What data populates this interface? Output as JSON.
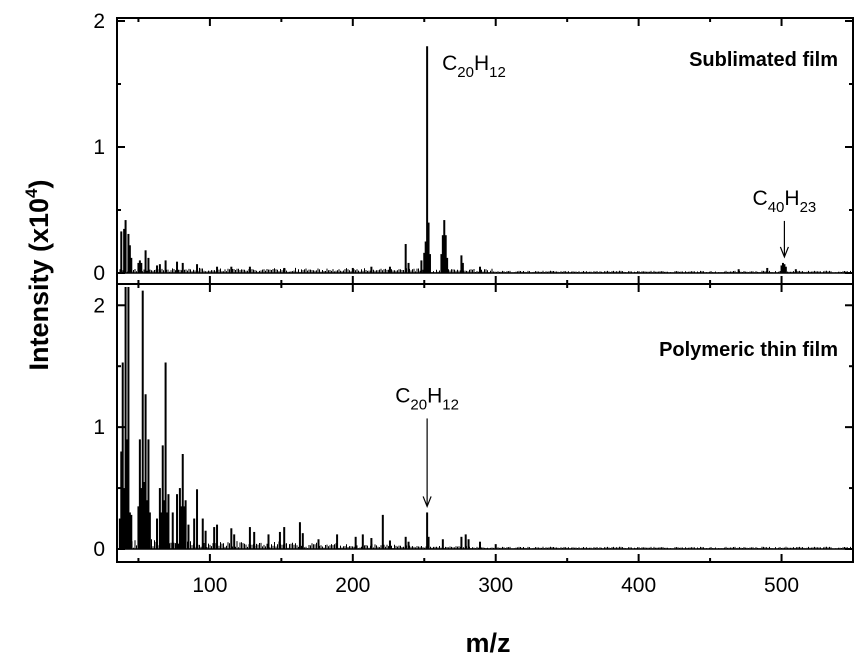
{
  "chart_data": [
    {
      "panel": "top",
      "type": "bar",
      "label": "Sublimated film",
      "xlabel": "m/z",
      "ylabel": "Intensity (x10^4)",
      "xlim": [
        35,
        550
      ],
      "ylim": [
        0,
        2
      ],
      "xticks": [
        100,
        200,
        300,
        400,
        500
      ],
      "yticks": [
        0,
        1,
        2
      ],
      "grid": false,
      "peaks": [
        {
          "x": 38,
          "y": 0.33
        },
        {
          "x": 40,
          "y": 0.35
        },
        {
          "x": 41,
          "y": 0.42
        },
        {
          "x": 43,
          "y": 0.31
        },
        {
          "x": 44,
          "y": 0.22
        },
        {
          "x": 45,
          "y": 0.12
        },
        {
          "x": 50,
          "y": 0.08
        },
        {
          "x": 51,
          "y": 0.1
        },
        {
          "x": 52,
          "y": 0.08
        },
        {
          "x": 55,
          "y": 0.18
        },
        {
          "x": 57,
          "y": 0.12
        },
        {
          "x": 63,
          "y": 0.06
        },
        {
          "x": 65,
          "y": 0.07
        },
        {
          "x": 69,
          "y": 0.1
        },
        {
          "x": 77,
          "y": 0.09
        },
        {
          "x": 81,
          "y": 0.08
        },
        {
          "x": 91,
          "y": 0.07
        },
        {
          "x": 105,
          "y": 0.05
        },
        {
          "x": 115,
          "y": 0.05
        },
        {
          "x": 128,
          "y": 0.05
        },
        {
          "x": 152,
          "y": 0.04
        },
        {
          "x": 200,
          "y": 0.04
        },
        {
          "x": 213,
          "y": 0.05
        },
        {
          "x": 226,
          "y": 0.05
        },
        {
          "x": 237,
          "y": 0.23
        },
        {
          "x": 239,
          "y": 0.08
        },
        {
          "x": 248,
          "y": 0.1
        },
        {
          "x": 250,
          "y": 0.16
        },
        {
          "x": 251,
          "y": 0.25
        },
        {
          "x": 252,
          "y": 1.8
        },
        {
          "x": 253,
          "y": 0.4
        },
        {
          "x": 254,
          "y": 0.15
        },
        {
          "x": 262,
          "y": 0.15
        },
        {
          "x": 263,
          "y": 0.3
        },
        {
          "x": 264,
          "y": 0.42
        },
        {
          "x": 265,
          "y": 0.3
        },
        {
          "x": 266,
          "y": 0.12
        },
        {
          "x": 276,
          "y": 0.14
        },
        {
          "x": 277,
          "y": 0.08
        },
        {
          "x": 289,
          "y": 0.05
        },
        {
          "x": 470,
          "y": 0.03
        },
        {
          "x": 490,
          "y": 0.04
        },
        {
          "x": 500,
          "y": 0.06
        },
        {
          "x": 501,
          "y": 0.08
        },
        {
          "x": 502,
          "y": 0.07
        },
        {
          "x": 503,
          "y": 0.05
        },
        {
          "x": 510,
          "y": 0.03
        }
      ],
      "annotations": [
        {
          "x": 252,
          "y": 1.8,
          "base": "C",
          "sub1": "20",
          "base2": "H",
          "sub2": "12",
          "arrow": false
        },
        {
          "x": 502,
          "y": 0.08,
          "base": "C",
          "sub1": "40",
          "base2": "H",
          "sub2": "23",
          "arrow": true
        }
      ]
    },
    {
      "panel": "bottom",
      "type": "bar",
      "label": "Polymeric thin film",
      "xlabel": "m/z",
      "ylabel": "Intensity (x10^4)",
      "xlim": [
        35,
        550
      ],
      "ylim": [
        0,
        2.15
      ],
      "xticks": [
        100,
        200,
        300,
        400,
        500
      ],
      "yticks": [
        0,
        1,
        2
      ],
      "grid": false,
      "peaks": [
        {
          "x": 37,
          "y": 0.25
        },
        {
          "x": 38,
          "y": 0.8
        },
        {
          "x": 39,
          "y": 1.53
        },
        {
          "x": 40,
          "y": 0.5
        },
        {
          "x": 41,
          "y": 2.15
        },
        {
          "x": 42,
          "y": 0.9
        },
        {
          "x": 43,
          "y": 2.15
        },
        {
          "x": 44,
          "y": 0.3
        },
        {
          "x": 45,
          "y": 0.28
        },
        {
          "x": 50,
          "y": 0.35
        },
        {
          "x": 51,
          "y": 0.9
        },
        {
          "x": 52,
          "y": 0.5
        },
        {
          "x": 53,
          "y": 2.12
        },
        {
          "x": 54,
          "y": 0.55
        },
        {
          "x": 55,
          "y": 1.27
        },
        {
          "x": 56,
          "y": 0.4
        },
        {
          "x": 57,
          "y": 0.9
        },
        {
          "x": 58,
          "y": 0.3
        },
        {
          "x": 63,
          "y": 0.25
        },
        {
          "x": 65,
          "y": 0.5
        },
        {
          "x": 66,
          "y": 0.3
        },
        {
          "x": 67,
          "y": 0.85
        },
        {
          "x": 68,
          "y": 0.4
        },
        {
          "x": 69,
          "y": 1.53
        },
        {
          "x": 70,
          "y": 0.3
        },
        {
          "x": 71,
          "y": 0.45
        },
        {
          "x": 74,
          "y": 0.3
        },
        {
          "x": 77,
          "y": 0.45
        },
        {
          "x": 79,
          "y": 0.5
        },
        {
          "x": 80,
          "y": 0.35
        },
        {
          "x": 81,
          "y": 0.78
        },
        {
          "x": 82,
          "y": 0.35
        },
        {
          "x": 83,
          "y": 0.4
        },
        {
          "x": 85,
          "y": 0.2
        },
        {
          "x": 89,
          "y": 0.25
        },
        {
          "x": 91,
          "y": 0.49
        },
        {
          "x": 95,
          "y": 0.25
        },
        {
          "x": 97,
          "y": 0.15
        },
        {
          "x": 103,
          "y": 0.18
        },
        {
          "x": 105,
          "y": 0.2
        },
        {
          "x": 115,
          "y": 0.17
        },
        {
          "x": 117,
          "y": 0.12
        },
        {
          "x": 128,
          "y": 0.18
        },
        {
          "x": 131,
          "y": 0.14
        },
        {
          "x": 141,
          "y": 0.12
        },
        {
          "x": 149,
          "y": 0.14
        },
        {
          "x": 152,
          "y": 0.18
        },
        {
          "x": 163,
          "y": 0.22
        },
        {
          "x": 165,
          "y": 0.13
        },
        {
          "x": 176,
          "y": 0.08
        },
        {
          "x": 189,
          "y": 0.12
        },
        {
          "x": 202,
          "y": 0.1
        },
        {
          "x": 207,
          "y": 0.12
        },
        {
          "x": 213,
          "y": 0.09
        },
        {
          "x": 221,
          "y": 0.28
        },
        {
          "x": 226,
          "y": 0.07
        },
        {
          "x": 237,
          "y": 0.1
        },
        {
          "x": 239,
          "y": 0.06
        },
        {
          "x": 252,
          "y": 0.3
        },
        {
          "x": 253,
          "y": 0.1
        },
        {
          "x": 263,
          "y": 0.08
        },
        {
          "x": 276,
          "y": 0.1
        },
        {
          "x": 279,
          "y": 0.12
        },
        {
          "x": 281,
          "y": 0.08
        },
        {
          "x": 289,
          "y": 0.06
        },
        {
          "x": 300,
          "y": 0.04
        }
      ],
      "annotations": [
        {
          "x": 252,
          "y": 0.3,
          "base": "C",
          "sub1": "20",
          "base2": "H",
          "sub2": "12",
          "arrow": true
        }
      ]
    }
  ],
  "axis_titles": {
    "x": "m/z",
    "y_prefix": "Intensity (x10",
    "y_sup": "4",
    "y_suffix": ")"
  },
  "colors": {
    "ink": "#000000",
    "background": "#ffffff"
  }
}
